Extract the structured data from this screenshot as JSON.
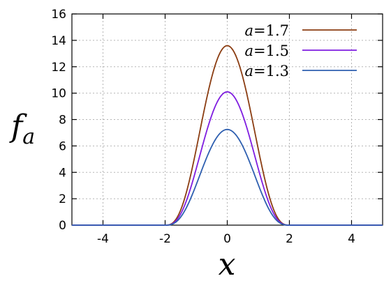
{
  "chart_data": {
    "type": "line",
    "xlabel": "x",
    "ylabel": "f",
    "ylabel_subscript": "a",
    "xlim": [
      -5,
      5
    ],
    "ylim": [
      0,
      16
    ],
    "xticks": [
      -4,
      -2,
      0,
      2,
      4
    ],
    "yticks": [
      0,
      2,
      4,
      6,
      8,
      10,
      12,
      14,
      16
    ],
    "grid": true,
    "legend_position": "top-right",
    "legend_param": "a",
    "series": [
      {
        "name": "1.7",
        "color": "#8b3d12",
        "peak": 13.6
      },
      {
        "name": "1.5",
        "color": "#7f1de0",
        "peak": 10.1
      },
      {
        "name": "1.3",
        "color": "#2e5fb0",
        "peak": 7.25
      }
    ]
  }
}
